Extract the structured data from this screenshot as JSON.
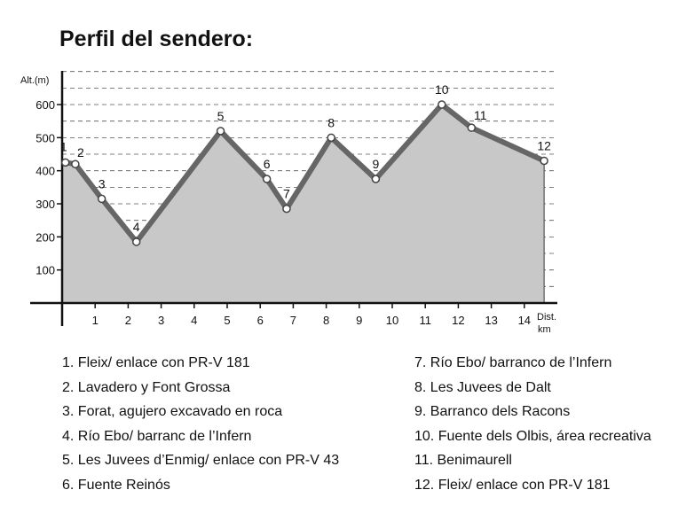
{
  "title": "Perfil del sendero:",
  "chart_data": {
    "type": "area",
    "ylabel": "Alt.(m)",
    "xlabel": "Dist.",
    "xunit": "km",
    "xlim": [
      0,
      15
    ],
    "ylim": [
      0,
      700
    ],
    "yticks": [
      100,
      200,
      300,
      400,
      500,
      600
    ],
    "xticks": [
      1,
      2,
      3,
      4,
      5,
      6,
      7,
      8,
      9,
      10,
      11,
      12,
      13,
      14
    ],
    "grid": "dashed horizontal",
    "points": [
      {
        "label": "1",
        "x": 0.1,
        "y": 425
      },
      {
        "label": "2",
        "x": 0.4,
        "y": 420
      },
      {
        "label": "3",
        "x": 1.2,
        "y": 315
      },
      {
        "label": "4",
        "x": 2.25,
        "y": 185
      },
      {
        "label": "5",
        "x": 4.8,
        "y": 520
      },
      {
        "label": "6",
        "x": 6.2,
        "y": 375
      },
      {
        "label": "7",
        "x": 6.8,
        "y": 285
      },
      {
        "label": "8",
        "x": 8.15,
        "y": 500
      },
      {
        "label": "9",
        "x": 9.5,
        "y": 375
      },
      {
        "label": "10",
        "x": 11.5,
        "y": 600
      },
      {
        "label": "11",
        "x": 12.4,
        "y": 530
      },
      {
        "label": "12",
        "x": 14.6,
        "y": 430
      }
    ],
    "colors": {
      "line": "#666666",
      "fill": "#c8c8c8",
      "marker_fill": "#ffffff",
      "grid": "#555555"
    }
  },
  "legend": {
    "left": [
      "1. Fleix/ enlace con PR-V 181",
      "2. Lavadero y Font Grossa",
      "3. Forat, agujero excavado en roca",
      "4. Río Ebo/ barranc de l’Infern",
      "5. Les Juvees d’Enmig/ enlace con PR-V 43",
      "6. Fuente Reinós"
    ],
    "right": [
      "7. Río Ebo/ barranco de l’Infern",
      "8. Les Juvees de Dalt",
      "9. Barranco dels Racons",
      "10. Fuente dels Olbis, área recreativa",
      "11. Benimaurell",
      "12. Fleix/ enlace con PR-V 181"
    ]
  }
}
